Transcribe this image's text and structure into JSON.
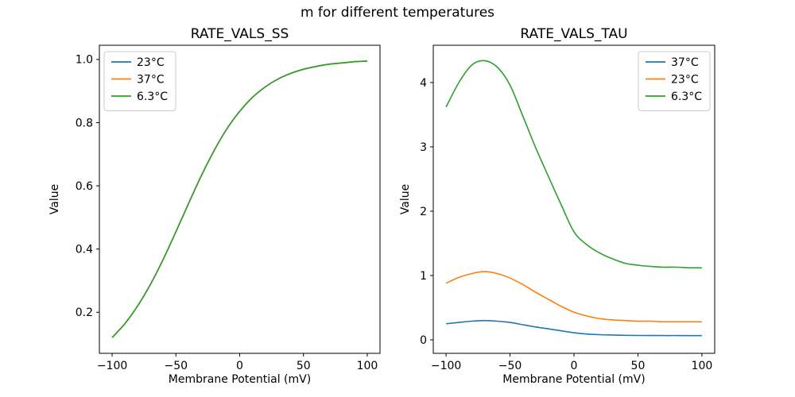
{
  "figure": {
    "title": "m for different temperatures",
    "background": "#ffffff",
    "text_color": "#000000",
    "spine_color": "#000000",
    "legend_edge_color": "#cccccc"
  },
  "chart_data": [
    {
      "id": "ss",
      "type": "line",
      "title": "RATE_VALS_SS",
      "xlabel": "Membrane Potential (mV)",
      "ylabel": "Value",
      "xlim": [
        -110,
        110
      ],
      "ylim": [
        0.07,
        1.045
      ],
      "xtick_vals": [
        -100,
        -50,
        0,
        50,
        100
      ],
      "xtick_labels": [
        "−100",
        "−50",
        "0",
        "50",
        "100"
      ],
      "ytick_vals": [
        0.2,
        0.4,
        0.6,
        0.8,
        1.0
      ],
      "ytick_labels": [
        "0.2",
        "0.4",
        "0.6",
        "0.8",
        "1.0"
      ],
      "grid": false,
      "legend_position": "upper-left",
      "x": [
        -100,
        -90,
        -80,
        -70,
        -60,
        -50,
        -40,
        -30,
        -20,
        -10,
        0,
        10,
        20,
        30,
        40,
        50,
        60,
        70,
        80,
        90,
        100
      ],
      "series": [
        {
          "name": "23°C",
          "color": "#1f77b4",
          "values": [
            0.12,
            0.164,
            0.22,
            0.288,
            0.367,
            0.455,
            0.545,
            0.633,
            0.712,
            0.781,
            0.836,
            0.88,
            0.913,
            0.938,
            0.956,
            0.969,
            0.978,
            0.985,
            0.989,
            0.993,
            0.995
          ]
        },
        {
          "name": "37°C",
          "color": "#ff7f0e",
          "values": [
            0.12,
            0.164,
            0.22,
            0.288,
            0.367,
            0.455,
            0.545,
            0.633,
            0.712,
            0.781,
            0.836,
            0.88,
            0.913,
            0.938,
            0.956,
            0.969,
            0.978,
            0.985,
            0.989,
            0.993,
            0.995
          ]
        },
        {
          "name": "6.3°C",
          "color": "#2ca02c",
          "values": [
            0.12,
            0.164,
            0.22,
            0.288,
            0.367,
            0.455,
            0.545,
            0.633,
            0.712,
            0.781,
            0.836,
            0.88,
            0.913,
            0.938,
            0.956,
            0.969,
            0.978,
            0.985,
            0.989,
            0.993,
            0.995
          ]
        }
      ]
    },
    {
      "id": "tau",
      "type": "line",
      "title": "RATE_VALS_TAU",
      "xlabel": "Membrane Potential (mV)",
      "ylabel": "Value",
      "xlim": [
        -110,
        110
      ],
      "ylim": [
        -0.21,
        4.58
      ],
      "xtick_vals": [
        -100,
        -50,
        0,
        50,
        100
      ],
      "xtick_labels": [
        "−100",
        "−50",
        "0",
        "50",
        "100"
      ],
      "ytick_vals": [
        0,
        1,
        2,
        3,
        4
      ],
      "ytick_labels": [
        "0",
        "1",
        "2",
        "3",
        "4"
      ],
      "grid": false,
      "legend_position": "upper-right",
      "x": [
        -100,
        -90,
        -80,
        -70,
        -60,
        -50,
        -40,
        -30,
        -20,
        -10,
        0,
        10,
        20,
        30,
        40,
        50,
        60,
        70,
        80,
        90,
        100
      ],
      "series": [
        {
          "name": "37°C",
          "color": "#1f77b4",
          "values": [
            0.25,
            0.27,
            0.29,
            0.3,
            0.29,
            0.27,
            0.235,
            0.2,
            0.17,
            0.14,
            0.11,
            0.09,
            0.08,
            0.075,
            0.07,
            0.068,
            0.067,
            0.066,
            0.066,
            0.065,
            0.065
          ]
        },
        {
          "name": "23°C",
          "color": "#ff7f0e",
          "values": [
            0.88,
            0.97,
            1.03,
            1.06,
            1.03,
            0.96,
            0.86,
            0.74,
            0.63,
            0.52,
            0.43,
            0.37,
            0.33,
            0.31,
            0.3,
            0.29,
            0.29,
            0.28,
            0.28,
            0.28,
            0.28
          ]
        },
        {
          "name": "6.3°C",
          "color": "#2ca02c",
          "values": [
            3.62,
            4.0,
            4.27,
            4.34,
            4.24,
            3.96,
            3.48,
            2.99,
            2.54,
            2.1,
            1.68,
            1.48,
            1.35,
            1.26,
            1.19,
            1.16,
            1.14,
            1.13,
            1.13,
            1.12,
            1.12
          ]
        }
      ]
    }
  ]
}
